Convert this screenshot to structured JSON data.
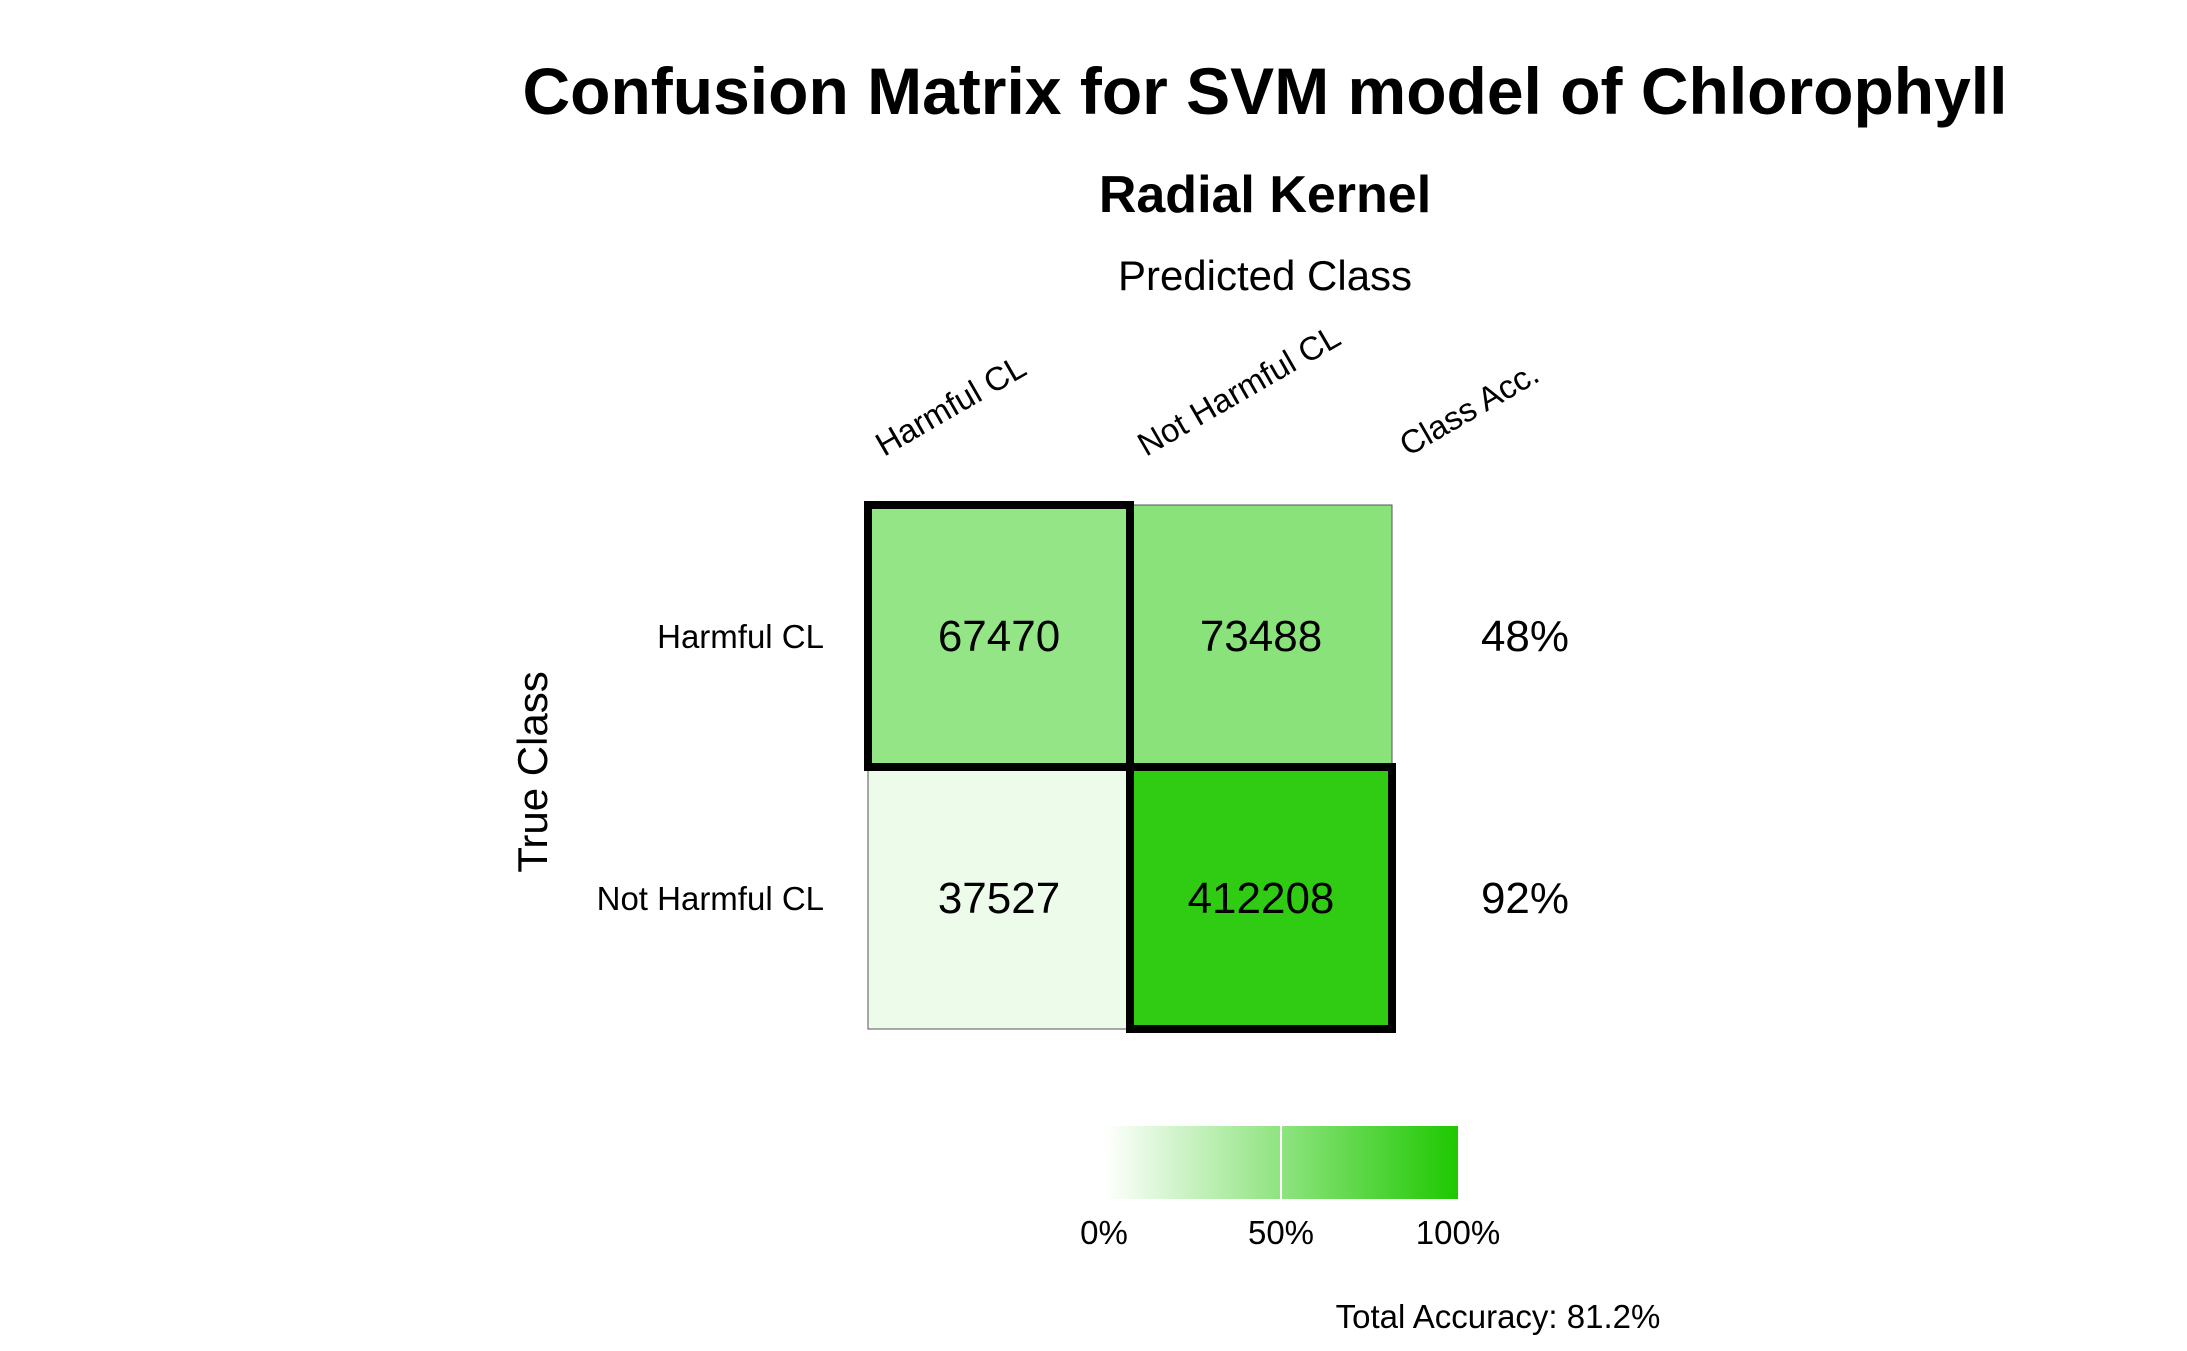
{
  "chart_data": {
    "type": "heatmap",
    "title": "Confusion Matrix for SVM model of Chlorophyll",
    "subtitle": "Radial Kernel",
    "xlabel": "Predicted Class",
    "ylabel": "True Class",
    "column_labels": [
      "Harmful CL",
      "Not Harmful CL",
      "Class Acc."
    ],
    "row_labels": [
      "Harmful CL",
      "Not Harmful CL"
    ],
    "matrix": [
      [
        67470,
        73488
      ],
      [
        37527,
        412208
      ]
    ],
    "cell_fill_fraction": [
      [
        0.48,
        0.52
      ],
      [
        0.08,
        0.92
      ]
    ],
    "class_accuracy": [
      "48%",
      "92%"
    ],
    "legend": {
      "min_color": "#ffffff",
      "max_color": "#1ec800",
      "ticks": [
        "0%",
        "50%",
        "100%"
      ],
      "tick_values": [
        0,
        0.5,
        1
      ]
    },
    "total_accuracy": "Total Accuracy: 81.2%"
  }
}
